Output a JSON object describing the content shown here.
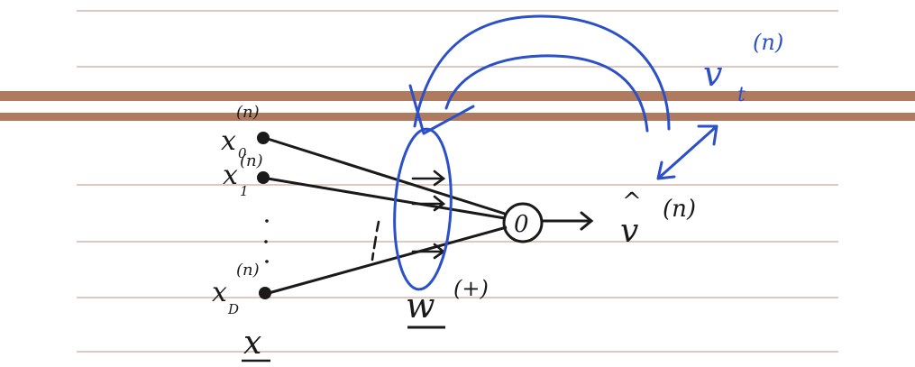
{
  "colors": {
    "paper": "#ffffff",
    "rule_line": "#c9a89a",
    "thick_band": "#b07a5e",
    "ink_black": "#1a1a1a",
    "ink_blue": "#2b50c8"
  },
  "inputs": [
    {
      "symbol": "x",
      "subscript": "0",
      "superscript": "(n)"
    },
    {
      "symbol": "x",
      "subscript": "1",
      "superscript": "(n)"
    },
    {
      "symbol": "x",
      "subscript": "D",
      "superscript": "(n)"
    }
  ],
  "input_vector_label": "x",
  "weight_label": {
    "symbol": "w",
    "superscript": "(+)"
  },
  "neuron_label": "0",
  "output_label": {
    "symbol": "v",
    "hat": "^",
    "superscript": "(n)"
  },
  "target_label": {
    "symbol": "v",
    "subscript": "t",
    "superscript": "(n)"
  }
}
